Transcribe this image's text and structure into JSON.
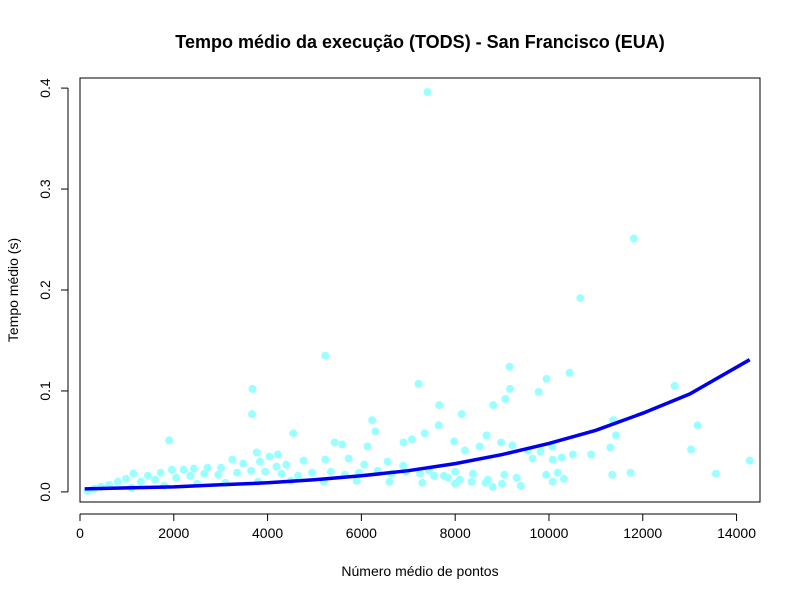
{
  "chart_data": {
    "type": "scatter",
    "title": "Tempo médio da execução (TODS) - San Francisco (EUA)",
    "xlabel": "Número médio de pontos",
    "ylabel": "Tempo médio (s)",
    "xlim": [
      0,
      14500
    ],
    "ylim": [
      -0.01,
      0.41
    ],
    "x_ticks": [
      0,
      2000,
      4000,
      6000,
      8000,
      10000,
      12000,
      14000
    ],
    "x_tick_labels": [
      "0",
      "2000",
      "4000",
      "6000",
      "8000",
      "10000",
      "12000",
      "14000"
    ],
    "y_ticks": [
      0.0,
      0.1,
      0.2,
      0.3,
      0.4
    ],
    "y_tick_labels": [
      "0.0",
      "0.1",
      "0.2",
      "0.3",
      "0.4"
    ],
    "grid": false,
    "legend": "none",
    "colors": {
      "points": "#99FFFF",
      "curve": "#0000EE",
      "axes": "#000000"
    },
    "series": [
      {
        "type": "scatter",
        "points": [
          [
            7410,
            0.396
          ],
          [
            11810,
            0.251
          ],
          [
            10670,
            0.192
          ],
          [
            5230,
            0.135
          ],
          [
            9160,
            0.124
          ],
          [
            10440,
            0.118
          ],
          [
            9950,
            0.112
          ],
          [
            7220,
            0.107
          ],
          [
            12680,
            0.105
          ],
          [
            3680,
            0.102
          ],
          [
            9170,
            0.102
          ],
          [
            9780,
            0.099
          ],
          [
            9070,
            0.092
          ],
          [
            8810,
            0.086
          ],
          [
            7660,
            0.086
          ],
          [
            8140,
            0.077
          ],
          [
            3670,
            0.077
          ],
          [
            6230,
            0.071
          ],
          [
            11370,
            0.071
          ],
          [
            13170,
            0.066
          ],
          [
            7650,
            0.066
          ],
          [
            6300,
            0.06
          ],
          [
            4550,
            0.058
          ],
          [
            8670,
            0.056
          ],
          [
            11430,
            0.056
          ],
          [
            8980,
            0.049
          ],
          [
            10070,
            0.045
          ],
          [
            11310,
            0.044
          ],
          [
            13030,
            0.042
          ],
          [
            9820,
            0.04
          ],
          [
            10510,
            0.037
          ],
          [
            10900,
            0.037
          ],
          [
            10270,
            0.034
          ],
          [
            9650,
            0.033
          ],
          [
            10080,
            0.032
          ],
          [
            14280,
            0.031
          ],
          [
            1900,
            0.051
          ],
          [
            3770,
            0.039
          ],
          [
            4040,
            0.035
          ],
          [
            4220,
            0.037
          ],
          [
            5430,
            0.049
          ],
          [
            5590,
            0.047
          ],
          [
            6130,
            0.045
          ],
          [
            6900,
            0.049
          ],
          [
            7080,
            0.052
          ],
          [
            7350,
            0.058
          ],
          [
            7980,
            0.05
          ],
          [
            8210,
            0.041
          ],
          [
            8520,
            0.045
          ],
          [
            9220,
            0.046
          ],
          [
            9550,
            0.041
          ],
          [
            11740,
            0.019
          ],
          [
            11350,
            0.017
          ],
          [
            10190,
            0.019
          ],
          [
            10320,
            0.013
          ],
          [
            10080,
            0.01
          ],
          [
            13560,
            0.018
          ],
          [
            9940,
            0.017
          ],
          [
            9310,
            0.014
          ],
          [
            9050,
            0.017
          ],
          [
            8700,
            0.012
          ],
          [
            8380,
            0.018
          ],
          [
            8000,
            0.02
          ],
          [
            7760,
            0.016
          ],
          [
            7440,
            0.021
          ],
          [
            6890,
            0.026
          ],
          [
            6560,
            0.03
          ],
          [
            6060,
            0.027
          ],
          [
            5730,
            0.033
          ],
          [
            5230,
            0.032
          ],
          [
            4770,
            0.031
          ],
          [
            4400,
            0.027
          ],
          [
            4190,
            0.025
          ],
          [
            3840,
            0.03
          ],
          [
            3480,
            0.028
          ],
          [
            3250,
            0.032
          ],
          [
            3010,
            0.024
          ],
          [
            2720,
            0.024
          ],
          [
            2430,
            0.023
          ],
          [
            2210,
            0.022
          ],
          [
            1960,
            0.022
          ],
          [
            1720,
            0.019
          ],
          [
            1450,
            0.016
          ],
          [
            1140,
            0.018
          ],
          [
            980,
            0.013
          ],
          [
            810,
            0.01
          ],
          [
            620,
            0.007
          ],
          [
            450,
            0.005
          ],
          [
            300,
            0.003
          ],
          [
            160,
            0.001
          ],
          [
            1300,
            0.01
          ],
          [
            1600,
            0.012
          ],
          [
            2050,
            0.014
          ],
          [
            2350,
            0.016
          ],
          [
            2650,
            0.018
          ],
          [
            2950,
            0.017
          ],
          [
            3350,
            0.019
          ],
          [
            3650,
            0.021
          ],
          [
            3950,
            0.02
          ],
          [
            4300,
            0.018
          ],
          [
            4650,
            0.016
          ],
          [
            4950,
            0.019
          ],
          [
            5350,
            0.02
          ],
          [
            5650,
            0.017
          ],
          [
            5950,
            0.019
          ],
          [
            6350,
            0.021
          ],
          [
            6650,
            0.018
          ],
          [
            6950,
            0.02
          ],
          [
            7250,
            0.018
          ],
          [
            7550,
            0.016
          ],
          [
            7850,
            0.014
          ],
          [
            8100,
            0.012
          ],
          [
            8350,
            0.01
          ],
          [
            8650,
            0.009
          ],
          [
            9000,
            0.008
          ],
          [
            9400,
            0.006
          ],
          [
            1100,
            0.004
          ],
          [
            1800,
            0.006
          ],
          [
            2500,
            0.008
          ],
          [
            3100,
            0.009
          ],
          [
            3800,
            0.01
          ],
          [
            4500,
            0.011
          ],
          [
            5200,
            0.01
          ],
          [
            5900,
            0.011
          ],
          [
            6600,
            0.01
          ],
          [
            7300,
            0.009
          ],
          [
            8000,
            0.008
          ],
          [
            8800,
            0.005
          ]
        ]
      },
      {
        "type": "line",
        "points": [
          [
            100,
            0.003
          ],
          [
            1000,
            0.004
          ],
          [
            2000,
            0.005
          ],
          [
            3000,
            0.007
          ],
          [
            4000,
            0.009
          ],
          [
            5000,
            0.012
          ],
          [
            6000,
            0.016
          ],
          [
            7000,
            0.021
          ],
          [
            8000,
            0.028
          ],
          [
            9000,
            0.037
          ],
          [
            10000,
            0.048
          ],
          [
            11000,
            0.061
          ],
          [
            12000,
            0.078
          ],
          [
            13000,
            0.097
          ],
          [
            14280,
            0.131
          ]
        ]
      }
    ]
  }
}
